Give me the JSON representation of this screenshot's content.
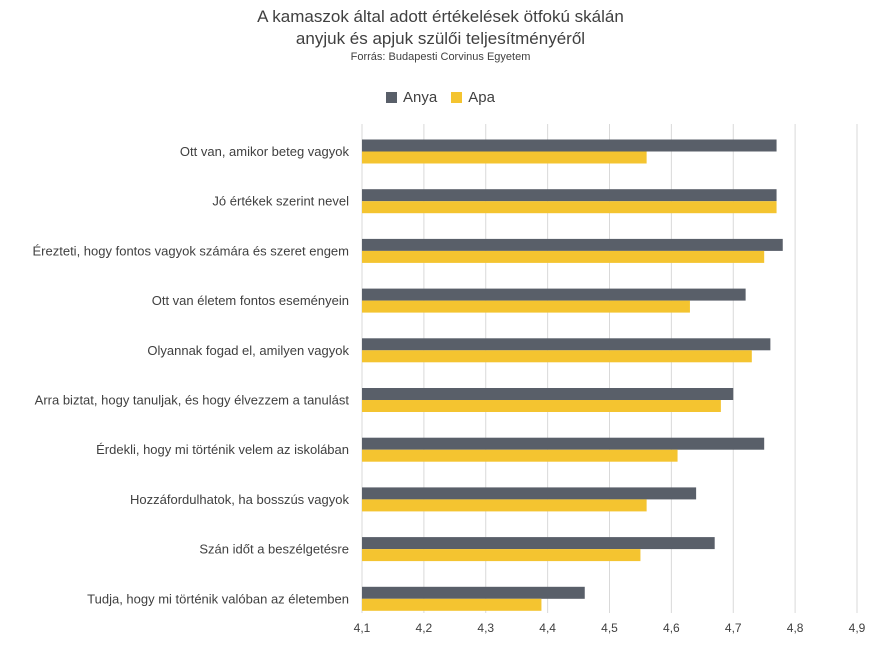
{
  "header": {
    "title_line1": "A kamaszok által adott értékelések ötfokú skálán",
    "title_line2": "anyjuk és apjuk szülői teljesítményéről",
    "source": "Forrás: Budapesti Corvinus Egyetem"
  },
  "chart_data": {
    "type": "bar",
    "orientation": "horizontal",
    "title": "A kamaszok által adott értékelések ötfokú skálán anyjuk és apjuk szülői teljesítményéről",
    "subtitle": "Forrás: Budapesti Corvinus Egyetem",
    "xlabel": "",
    "ylabel": "",
    "xlim": [
      4.1,
      4.9
    ],
    "ticks": [
      "4,1",
      "4,2",
      "4,3",
      "4,4",
      "4,5",
      "4,6",
      "4,7",
      "4,8",
      "4,9"
    ],
    "tick_values": [
      4.1,
      4.2,
      4.3,
      4.4,
      4.5,
      4.6,
      4.7,
      4.8,
      4.9
    ],
    "grid": "vertical",
    "legend_position": "top",
    "categories": [
      "Ott van, amikor beteg vagyok",
      "Jó értékek szerint nevel",
      "Érezteti, hogy fontos vagyok számára és szeret engem",
      "Ott van életem fontos eseményein",
      "Olyannak fogad el, amilyen vagyok",
      "Arra biztat, hogy tanuljak, és hogy élvezzem a tanulást",
      "Érdekli, hogy mi történik velem az iskolában",
      "Hozzáfordulhatok, ha bosszús vagyok",
      "Szán időt a beszélgetésre",
      "Tudja, hogy mi történik valóban az életemben"
    ],
    "series": [
      {
        "name": "Anya",
        "color": "#595f69",
        "values": [
          4.77,
          4.77,
          4.78,
          4.72,
          4.76,
          4.7,
          4.75,
          4.64,
          4.67,
          4.46
        ]
      },
      {
        "name": "Apa",
        "color": "#f4c430",
        "values": [
          4.56,
          4.77,
          4.75,
          4.63,
          4.73,
          4.68,
          4.61,
          4.56,
          4.55,
          4.39
        ]
      }
    ]
  }
}
